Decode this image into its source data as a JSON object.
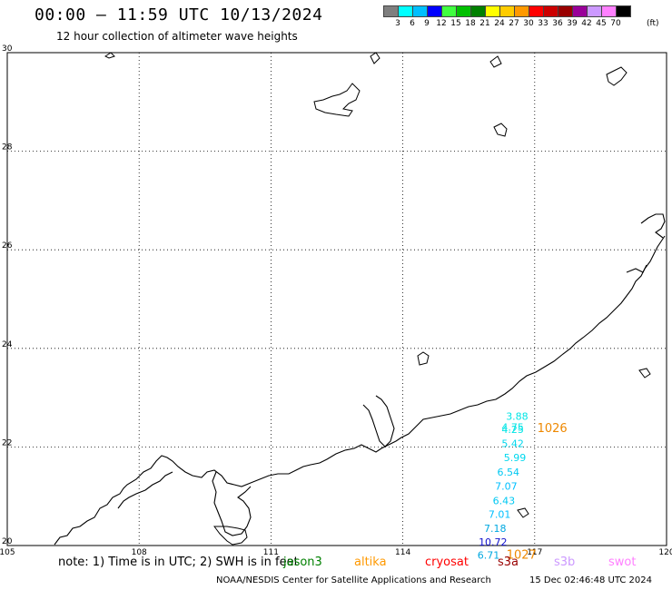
{
  "header": {
    "title": "00:00 – 11:59 UTC 10/13/2024",
    "subtitle": "12 hour collection of altimeter wave heights"
  },
  "colorbar": {
    "colors": [
      "#7f7f7f",
      "#00ffff",
      "#00bfff",
      "#0000ff",
      "#40ff40",
      "#00c000",
      "#008000",
      "#ffff00",
      "#ffcc00",
      "#ff9900",
      "#ff0000",
      "#cc0000",
      "#990000",
      "#990099",
      "#cc99ff",
      "#ff80ff",
      "#000000"
    ],
    "labels": [
      "3",
      "6",
      "9",
      "12",
      "15",
      "18",
      "21",
      "24",
      "27",
      "30",
      "33",
      "36",
      "39",
      "42",
      "45",
      "70"
    ],
    "unit": "(ft)"
  },
  "map": {
    "lon_ticks": [
      "105",
      "108",
      "111",
      "114",
      "117",
      "120"
    ],
    "lat_ticks": [
      "20",
      "22",
      "24",
      "26",
      "28",
      "30"
    ],
    "lon_range": [
      105,
      120
    ],
    "lat_range": [
      20,
      30
    ],
    "grid": "dotted"
  },
  "observations": [
    {
      "label": "3.88",
      "color": "#00e5e5",
      "lon": 116.6,
      "lat": 22.55
    },
    {
      "label": "4.75",
      "color": "#00e5e5",
      "lon": 116.5,
      "lat": 22.33
    },
    {
      "label": "4.25",
      "color": "#00e5e5",
      "lon": 116.5,
      "lat": 22.28
    },
    {
      "label": "5.42",
      "color": "#00d8ee",
      "lon": 116.5,
      "lat": 22.0
    },
    {
      "label": "5.99",
      "color": "#00d8ee",
      "lon": 116.55,
      "lat": 21.71
    },
    {
      "label": "6.54",
      "color": "#00c8f2",
      "lon": 116.4,
      "lat": 21.42
    },
    {
      "label": "7.07",
      "color": "#00bfff",
      "lon": 116.35,
      "lat": 21.13
    },
    {
      "label": "6.43",
      "color": "#00c8f2",
      "lon": 116.3,
      "lat": 20.84
    },
    {
      "label": "7.01",
      "color": "#00bfff",
      "lon": 116.2,
      "lat": 20.56
    },
    {
      "label": "7.18",
      "color": "#00a8e0",
      "lon": 116.1,
      "lat": 20.28
    },
    {
      "label": "10.72",
      "color": "#1010cc",
      "lon": 116.05,
      "lat": 20.0
    },
    {
      "label": "6.71",
      "color": "#00a8e0",
      "lon": 115.95,
      "lat": 19.73
    }
  ],
  "times": [
    {
      "label": "1026",
      "color": "#ee8800",
      "lon": 117.4,
      "lat": 22.3
    },
    {
      "label": "1027",
      "color": "#ee8800",
      "lon": 116.7,
      "lat": 19.73
    }
  ],
  "note": {
    "text": "note: 1) Time is in UTC; 2) SWH is in feet",
    "satellites": [
      {
        "name": "jason3",
        "color": "#008000"
      },
      {
        "name": "altika",
        "color": "#ff9900"
      },
      {
        "name": "cryosat",
        "color": "#ff0000"
      },
      {
        "name": "s3a",
        "color": "#990000"
      },
      {
        "name": "s3b",
        "color": "#cc99ff"
      },
      {
        "name": "swot",
        "color": "#ff80ff"
      }
    ]
  },
  "footer": {
    "credit": "NOAA/NESDIS Center for Satellite Applications and Research",
    "timestamp": "15 Dec 02:46:48 UTC 2024"
  }
}
